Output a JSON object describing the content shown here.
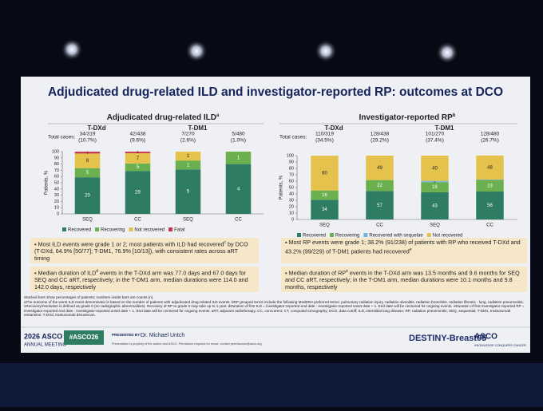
{
  "slide": {
    "title": "Adjudicated drug-related ILD and investigator-reported RP: outcomes at DCO",
    "bullets_left": [
      [
        "Most ILD events were grade 1 or 2; most patients with ILD had recovered",
        "c",
        " by DCO (T-DXd, 64.9% [50/77]; T-DM1, 76.9% [10/13]), with consistent rates across aRT timing"
      ],
      [
        "Median duration of ILD",
        "d",
        " events in the T-DXd arm was 77.0 days and 67.0 days for SEQ and CC aRT, respectively; in the T-DM1 arm, median durations were 114.0 and 142.0 days, respectively"
      ]
    ],
    "bullets_right": [
      [
        "Most RP events were grade 1; 38.2% (91/238) of patients with RP who received T-DXd and 43.2% (99/229) of T-DM1 patients had recovered",
        "e",
        ""
      ],
      [
        "Median duration of RP",
        "e",
        " events in the T-DXd arm was 13.5 months and 9.6 months for SEQ and CC aRT, respectively; in the T-DM1 arm, median durations were 10.1 months and 9.8 months, respectively"
      ]
    ],
    "footnote_1": "Stacked bars show percentages of patients; numbers inside bars are counts (n).",
    "footnote_2": "aThe outcome of the worst ILD event denominator is based on the number of patients with adjudicated drug-related ILD events. bRP grouped terms include the following MedDRA preferred terms: pulmonary radiation injury, radiation alveolitis, radiation bronchitis, radiation fibrosis - lung, radiation pneumonitis. cRecovery/resolution is defined as grade 0 (no radiographic abnormalities). Recovery of RP to grade 0 may take up to 1 year. dDuration of first ILD = investigator-reported end date - investigator-reported onset date + 1. End date will be censored for ongoing events. eDuration of first investigator-reported RP = investigator-reported end date - investigator-reported onset date + 1. End date will be censored for ongoing events. aRT, adjuvant radiotherapy; CC, concurrent; CT, computed tomography; DCO, data cutoff; ILD, interstitial lung disease; RP, radiation pneumonitis; SEQ, sequential; T-DM1, trastuzumab emtansine; T-DXd, trastuzumab deruxtecan.",
    "meeting_year": "2026 ASCO",
    "meeting_name": "ANNUAL MEETING",
    "hashtag": "#ASCO26",
    "presented_by": "PRESENTED BY:",
    "presenter": "Dr. Michael Untch",
    "permission": "Presentation is property of the author and ASCO. Permission required for reuse; contact permissions@asco.org.",
    "trial": "DESTINY-Breast05",
    "org": "ASCO",
    "org_tagline": "KNOWLEDGE CONQUERS CANCER"
  },
  "chart_data": [
    {
      "type": "stacked_bar",
      "title": "Adjudicated drug-related ILD",
      "title_sup": "a",
      "groups": [
        "T-DXd",
        "T-DM1"
      ],
      "total_cases_label": "Total cases:",
      "total_cases": [
        [
          "34/319",
          "(10.7%)"
        ],
        [
          "42/438",
          "(9.6%)"
        ],
        [
          "7/270",
          "(2.6%)"
        ],
        [
          "5/480",
          "(1.0%)"
        ]
      ],
      "categories": [
        "SEQ",
        "CC",
        "SEQ",
        "CC"
      ],
      "ylabel": "Patients, %",
      "ylim": [
        0,
        100
      ],
      "yticks": [
        0,
        10,
        20,
        30,
        40,
        50,
        60,
        70,
        80,
        90,
        100
      ],
      "series": [
        {
          "name": "Recovered",
          "color": "#2e7d62",
          "values": [
            58.8,
            69.0,
            71.4,
            80.0
          ],
          "counts": [
            20,
            29,
            5,
            4
          ]
        },
        {
          "name": "Recovering",
          "color": "#6bb04f",
          "values": [
            14.7,
            11.9,
            14.3,
            20.0
          ],
          "counts": [
            5,
            5,
            1,
            1
          ]
        },
        {
          "name": "Not recovered",
          "color": "#e5c24c",
          "values": [
            23.5,
            16.7,
            14.3,
            0
          ],
          "counts": [
            8,
            7,
            1,
            null
          ]
        },
        {
          "name": "Fatal",
          "color": "#c8324a",
          "values": [
            2.9,
            2.4,
            0,
            0
          ],
          "counts": [
            1,
            1,
            null,
            null
          ]
        }
      ]
    },
    {
      "type": "stacked_bar",
      "title": "Investigator-reported RP",
      "title_sup": "b",
      "groups": [
        "T-DXd",
        "T-DM1"
      ],
      "total_cases_label": "Total cases:",
      "total_cases": [
        [
          "110/319",
          "(34.5%)"
        ],
        [
          "128/438",
          "(29.2%)"
        ],
        [
          "101/270",
          "(37.4%)"
        ],
        [
          "128/480",
          "(26.7%)"
        ]
      ],
      "categories": [
        "SEQ",
        "CC",
        "SEQ",
        "CC"
      ],
      "ylabel": "Patients, %",
      "ylim": [
        0,
        100
      ],
      "yticks": [
        0,
        10,
        20,
        30,
        40,
        50,
        60,
        70,
        80,
        90,
        100
      ],
      "series": [
        {
          "name": "Recovered",
          "color": "#2e7d62",
          "values": [
            30.9,
            44.5,
            42.6,
            43.8
          ],
          "counts": [
            34,
            57,
            43,
            56
          ]
        },
        {
          "name": "Recovering",
          "color": "#6bb04f",
          "values": [
            14.5,
            17.2,
            15.8,
            18.0
          ],
          "counts": [
            16,
            22,
            16,
            23
          ]
        },
        {
          "name": "Recovered with sequelae",
          "color": "#6fb6d9",
          "values": [
            0,
            0,
            2.0,
            0.8
          ],
          "counts": [
            null,
            null,
            2,
            null
          ]
        },
        {
          "name": "Not recovered",
          "color": "#e5c24c",
          "values": [
            54.5,
            38.3,
            39.6,
            37.5
          ],
          "counts": [
            60,
            49,
            40,
            48
          ]
        }
      ]
    }
  ]
}
